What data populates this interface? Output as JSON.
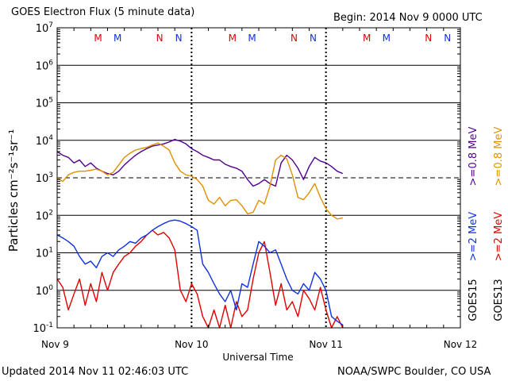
{
  "header": {
    "title": "GOES Electron Flux (5 minute data)",
    "begin": "Begin: 2014 Nov 9 0000 UTC"
  },
  "footer": {
    "updated": "Updated 2014 Nov 11 02:46:03 UTC",
    "source": "NOAA/SWPC Boulder, CO USA"
  },
  "chart_data": {
    "type": "line",
    "title": "GOES Electron Flux (5 minute data)",
    "xlabel": "Universal Time",
    "ylabel": "Particles cm⁻²s⁻¹sr⁻¹",
    "yscale": "log",
    "ylim": [
      0.1,
      10000000
    ],
    "y_ticks": [
      {
        "value": 0.1,
        "base": "10",
        "exp": "-1"
      },
      {
        "value": 1,
        "base": "10",
        "exp": "0"
      },
      {
        "value": 10,
        "base": "10",
        "exp": "1"
      },
      {
        "value": 100,
        "base": "10",
        "exp": "2"
      },
      {
        "value": 1000,
        "base": "10",
        "exp": "3"
      },
      {
        "value": 10000,
        "base": "10",
        "exp": "4"
      },
      {
        "value": 100000,
        "base": "10",
        "exp": "5"
      },
      {
        "value": 1000000,
        "base": "10",
        "exp": "6"
      },
      {
        "value": 10000000,
        "base": "10",
        "exp": "7"
      }
    ],
    "xlim_hours": [
      0,
      72
    ],
    "x_ticks": [
      {
        "hour": 0,
        "label": "Nov 9"
      },
      {
        "hour": 24,
        "label": "Nov 10"
      },
      {
        "hour": 48,
        "label": "Nov 11"
      },
      {
        "hour": 72,
        "label": "Nov 12"
      }
    ],
    "threshold": 1000,
    "grid": true,
    "markers": [
      {
        "hour": 7.3,
        "label": "M",
        "color": "#e00000"
      },
      {
        "hour": 10.8,
        "label": "M",
        "color": "#1030e0"
      },
      {
        "hour": 18.3,
        "label": "N",
        "color": "#e00000"
      },
      {
        "hour": 21.7,
        "label": "N",
        "color": "#1030e0"
      },
      {
        "hour": 31.3,
        "label": "M",
        "color": "#e00000"
      },
      {
        "hour": 34.8,
        "label": "M",
        "color": "#1030e0"
      },
      {
        "hour": 42.3,
        "label": "N",
        "color": "#e00000"
      },
      {
        "hour": 45.7,
        "label": "N",
        "color": "#1030e0"
      },
      {
        "hour": 55.3,
        "label": "M",
        "color": "#e00000"
      },
      {
        "hour": 58.8,
        "label": "M",
        "color": "#1030e0"
      },
      {
        "hour": 66.3,
        "label": "N",
        "color": "#e00000"
      },
      {
        "hour": 69.7,
        "label": "N",
        "color": "#1030e0"
      }
    ],
    "legend": [
      {
        "label": ">=0.8 MeV",
        "color": "#e09000"
      },
      {
        "label": ">=0.8 MeV",
        "color": "#500090"
      },
      {
        "label": ">=2 MeV",
        "color": "#e00000"
      },
      {
        "label": ">=2 MeV",
        "color": "#1030e0"
      },
      {
        "label": "GOES13",
        "color": "#000000"
      },
      {
        "label": "GOES15",
        "color": "#000000"
      }
    ],
    "series": [
      {
        "name": "GOES15 >=0.8 MeV",
        "color": "#500090",
        "x": [
          0,
          1,
          2,
          3,
          4,
          5,
          6,
          7,
          8,
          9,
          10,
          11,
          12,
          13,
          14,
          15,
          16,
          17,
          18,
          19,
          20,
          21,
          22,
          23,
          24,
          25,
          26,
          27,
          28,
          29,
          30,
          31,
          32,
          33,
          34,
          35,
          36,
          37,
          38,
          39,
          40,
          41,
          42,
          43,
          44,
          45,
          46,
          47,
          48,
          49,
          50,
          51
        ],
        "y": [
          5000,
          4000,
          3500,
          2500,
          3000,
          2000,
          2500,
          1800,
          1500,
          1300,
          1200,
          1500,
          2200,
          3000,
          4000,
          5000,
          6000,
          7000,
          7500,
          8000,
          9000,
          10500,
          9500,
          8000,
          6000,
          5000,
          4000,
          3500,
          3000,
          3000,
          2300,
          2000,
          1800,
          1500,
          900,
          600,
          700,
          900,
          700,
          600,
          2500,
          4000,
          3000,
          1800,
          900,
          2000,
          3500,
          2800,
          2500,
          2000,
          1500,
          1300
        ]
      },
      {
        "name": "GOES13 >=0.8 MeV",
        "color": "#e09000",
        "x": [
          0,
          1,
          2,
          3,
          4,
          5,
          6,
          7,
          8,
          9,
          10,
          11,
          12,
          13,
          14,
          15,
          16,
          17,
          18,
          19,
          20,
          21,
          22,
          23,
          24,
          25,
          26,
          27,
          28,
          29,
          30,
          31,
          32,
          33,
          34,
          35,
          36,
          37,
          38,
          39,
          40,
          41,
          42,
          43,
          44,
          45,
          46,
          47,
          48,
          49,
          50,
          51
        ],
        "y": [
          1000,
          800,
          1200,
          1400,
          1500,
          1500,
          1600,
          1700,
          1500,
          1200,
          1400,
          2200,
          3500,
          4500,
          5500,
          6000,
          6500,
          7500,
          8500,
          7000,
          5500,
          2500,
          1500,
          1200,
          1100,
          900,
          600,
          250,
          200,
          300,
          180,
          250,
          260,
          180,
          110,
          120,
          250,
          200,
          600,
          3000,
          4000,
          3200,
          1200,
          300,
          260,
          400,
          700,
          300,
          150,
          100,
          80,
          85
        ]
      },
      {
        "name": "GOES15 >=2 MeV",
        "color": "#1030e0",
        "x": [
          0,
          1,
          2,
          3,
          4,
          5,
          6,
          7,
          8,
          9,
          10,
          11,
          12,
          13,
          14,
          15,
          16,
          17,
          18,
          19,
          20,
          21,
          22,
          23,
          24,
          25,
          26,
          27,
          28,
          29,
          30,
          31,
          32,
          33,
          34,
          35,
          36,
          37,
          38,
          39,
          40,
          41,
          42,
          43,
          44,
          45,
          46,
          47,
          48,
          49,
          50,
          51
        ],
        "y": [
          30,
          25,
          20,
          15,
          8,
          5,
          6,
          4,
          8,
          10,
          8,
          12,
          15,
          20,
          18,
          25,
          30,
          40,
          50,
          60,
          70,
          75,
          70,
          60,
          50,
          40,
          5,
          3,
          1.5,
          0.8,
          0.5,
          1.0,
          0.3,
          1.5,
          1.2,
          5,
          20,
          15,
          10,
          12,
          5,
          2,
          1.0,
          0.8,
          1.5,
          1.0,
          3,
          2,
          1.0,
          0.2,
          0.15,
          0.12
        ]
      },
      {
        "name": "GOES13 >=2 MeV",
        "color": "#e00000",
        "x": [
          0,
          1,
          2,
          3,
          4,
          5,
          6,
          7,
          8,
          9,
          10,
          11,
          12,
          13,
          14,
          15,
          16,
          17,
          18,
          19,
          20,
          21,
          22,
          23,
          24,
          25,
          26,
          27,
          28,
          29,
          30,
          31,
          32,
          33,
          34,
          35,
          36,
          37,
          38,
          39,
          40,
          41,
          42,
          43,
          44,
          45,
          46,
          47,
          48,
          49,
          50,
          51
        ],
        "y": [
          2,
          1.2,
          0.3,
          0.8,
          2,
          0.4,
          1.5,
          0.5,
          3,
          1,
          3,
          5,
          8,
          10,
          15,
          20,
          30,
          40,
          30,
          35,
          25,
          12,
          1,
          0.5,
          1.5,
          0.8,
          0.2,
          0.1,
          0.3,
          0.1,
          0.4,
          0.1,
          0.5,
          0.2,
          0.3,
          2,
          10,
          20,
          3,
          0.4,
          1.5,
          0.3,
          0.5,
          0.2,
          1,
          0.6,
          0.3,
          1.2,
          0.3,
          0.1,
          0.2,
          0.1
        ]
      }
    ]
  }
}
